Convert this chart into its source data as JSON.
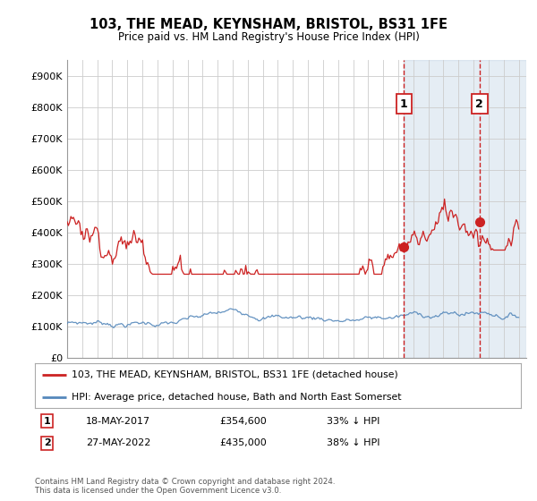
{
  "title": "103, THE MEAD, KEYNSHAM, BRISTOL, BS31 1FE",
  "subtitle": "Price paid vs. HM Land Registry's House Price Index (HPI)",
  "ylim": [
    0,
    950000
  ],
  "yticks": [
    0,
    100000,
    200000,
    300000,
    400000,
    500000,
    600000,
    700000,
    800000,
    900000
  ],
  "ytick_labels": [
    "£0",
    "£100K",
    "£200K",
    "£300K",
    "£400K",
    "£500K",
    "£600K",
    "£700K",
    "£800K",
    "£900K"
  ],
  "xlim_start": 1995.0,
  "xlim_end": 2025.5,
  "hpi_color": "#5588bb",
  "hpi_fill_color": "#ddeeff",
  "price_color": "#cc2222",
  "vline_color": "#cc2222",
  "purchase1_x": 2017.38,
  "purchase1_y": 354600,
  "purchase2_x": 2022.4,
  "purchase2_y": 435000,
  "legend1": "103, THE MEAD, KEYNSHAM, BRISTOL, BS31 1FE (detached house)",
  "legend2": "HPI: Average price, detached house, Bath and North East Somerset",
  "note1_label": "1",
  "note1_date": "18-MAY-2017",
  "note1_price": "£354,600",
  "note1_hpi": "33% ↓ HPI",
  "note2_label": "2",
  "note2_date": "27-MAY-2022",
  "note2_price": "£435,000",
  "note2_hpi": "38% ↓ HPI",
  "footer": "Contains HM Land Registry data © Crown copyright and database right 2024.\nThis data is licensed under the Open Government Licence v3.0.",
  "background_color": "#ffffff",
  "grid_color": "#cccccc"
}
